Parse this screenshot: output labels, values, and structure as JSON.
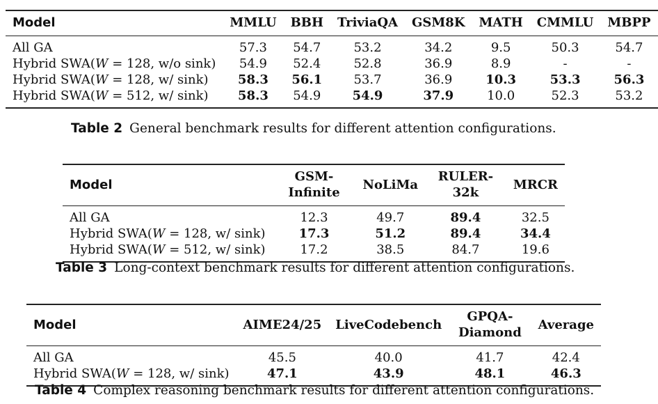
{
  "table2": {
    "columns": [
      "Model",
      "MMLU",
      "BBH",
      "TriviaQA",
      "GSM8K",
      "MATH",
      "CMMLU",
      "MBPP"
    ],
    "rows": [
      {
        "model": "All GA",
        "cells": [
          {
            "v": "57.3",
            "b": false
          },
          {
            "v": "54.7",
            "b": false
          },
          {
            "v": "53.2",
            "b": false
          },
          {
            "v": "34.2",
            "b": false
          },
          {
            "v": "9.5",
            "b": false
          },
          {
            "v": "50.3",
            "b": false
          },
          {
            "v": "54.7",
            "b": false
          }
        ]
      },
      {
        "model_pre": "Hybrid SWA(",
        "model_var": "W",
        "model_post": " = 128, w/o sink)",
        "cells": [
          {
            "v": "54.9",
            "b": false
          },
          {
            "v": "52.4",
            "b": false
          },
          {
            "v": "52.8",
            "b": false
          },
          {
            "v": "36.9",
            "b": false
          },
          {
            "v": "8.9",
            "b": false
          },
          {
            "v": "-",
            "b": false
          },
          {
            "v": "-",
            "b": false
          }
        ]
      },
      {
        "model_pre": "Hybrid SWA(",
        "model_var": "W",
        "model_post": " = 128, w/ sink)",
        "cells": [
          {
            "v": "58.3",
            "b": true
          },
          {
            "v": "56.1",
            "b": true
          },
          {
            "v": "53.7",
            "b": false
          },
          {
            "v": "36.9",
            "b": false
          },
          {
            "v": "10.3",
            "b": true
          },
          {
            "v": "53.3",
            "b": true
          },
          {
            "v": "56.3",
            "b": true
          }
        ]
      },
      {
        "model_pre": "Hybrid SWA(",
        "model_var": "W",
        "model_post": " = 512, w/ sink)",
        "cells": [
          {
            "v": "58.3",
            "b": true
          },
          {
            "v": "54.9",
            "b": false
          },
          {
            "v": "54.9",
            "b": true
          },
          {
            "v": "37.9",
            "b": true
          },
          {
            "v": "10.0",
            "b": false
          },
          {
            "v": "52.3",
            "b": false
          },
          {
            "v": "53.2",
            "b": false
          }
        ]
      }
    ],
    "caption_label": "Table 2",
    "caption_text": "General benchmark results for different attention configurations."
  },
  "table3": {
    "columns": [
      "Model",
      "GSM-Infinite",
      "NoLiMa",
      "RULER-32k",
      "MRCR"
    ],
    "rows": [
      {
        "model": "All GA",
        "cells": [
          {
            "v": "12.3",
            "b": false
          },
          {
            "v": "49.7",
            "b": false
          },
          {
            "v": "89.4",
            "b": true
          },
          {
            "v": "32.5",
            "b": false
          }
        ]
      },
      {
        "model_pre": "Hybrid SWA(",
        "model_var": "W",
        "model_post": " = 128, w/ sink)",
        "cells": [
          {
            "v": "17.3",
            "b": true
          },
          {
            "v": "51.2",
            "b": true
          },
          {
            "v": "89.4",
            "b": true
          },
          {
            "v": "34.4",
            "b": true
          }
        ]
      },
      {
        "model_pre": "Hybrid SWA(",
        "model_var": "W",
        "model_post": " = 512, w/ sink)",
        "cells": [
          {
            "v": "17.2",
            "b": false
          },
          {
            "v": "38.5",
            "b": false
          },
          {
            "v": "84.7",
            "b": false
          },
          {
            "v": "19.6",
            "b": false
          }
        ]
      }
    ],
    "caption_label": "Table 3",
    "caption_text": "Long-context benchmark results for different attention configurations."
  },
  "table4": {
    "columns": [
      "Model",
      "AIME24/25",
      "LiveCodebench",
      "GPQA-Diamond",
      "Average"
    ],
    "rows": [
      {
        "model": "All GA",
        "cells": [
          {
            "v": "45.5",
            "b": false
          },
          {
            "v": "40.0",
            "b": false
          },
          {
            "v": "41.7",
            "b": false
          },
          {
            "v": "42.4",
            "b": false
          }
        ]
      },
      {
        "model_pre": "Hybrid SWA(",
        "model_var": "W",
        "model_post": " = 128, w/ sink)",
        "cells": [
          {
            "v": "47.1",
            "b": true
          },
          {
            "v": "43.9",
            "b": true
          },
          {
            "v": "48.1",
            "b": true
          },
          {
            "v": "46.3",
            "b": true
          }
        ]
      }
    ],
    "caption_label": "Table 4",
    "caption_text": "Complex reasoning benchmark results for different attention configurations."
  }
}
